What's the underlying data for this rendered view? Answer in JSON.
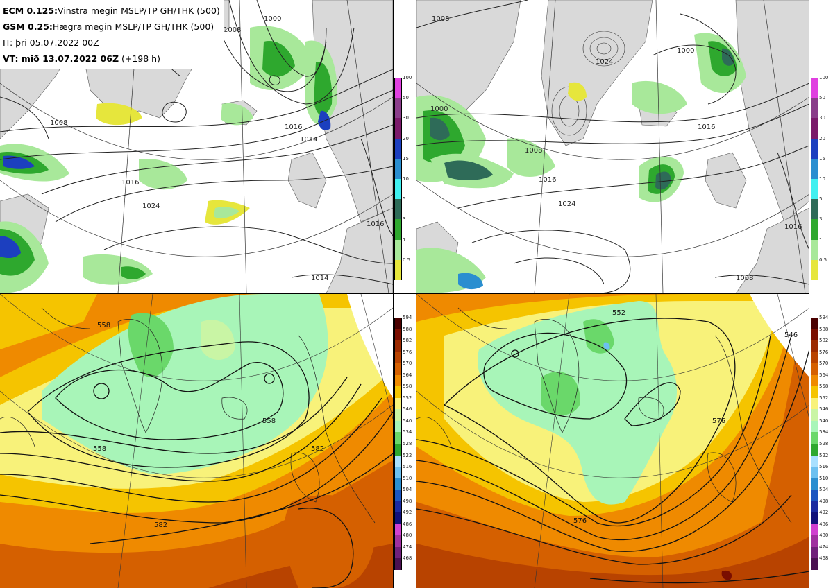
{
  "legend": {
    "line1_bold": "ECM 0.125:",
    "line1_text": "Vinstra megin MSLP/TP GH/THK (500)",
    "line2_bold": "GSM 0.25:",
    "line2_text": "Hægra megin MSLP/TP GH/THK (500)",
    "line3_text": "IT: þri 05.07.2022 00Z",
    "line4_bold": "VT: mið 13.07.2022 06Z",
    "line4_text": " (+198 h)"
  },
  "precip_colorbar": {
    "levels": [
      "100",
      "50",
      "30",
      "20",
      "15",
      "10",
      "5",
      "3",
      "1",
      "0.5"
    ],
    "colors": [
      "#e040e0",
      "#8a3d8a",
      "#7a1a6a",
      "#1c3fbf",
      "#2a8ed0",
      "#40f0f0",
      "#2e6b58",
      "#2ea82e",
      "#a8e89a",
      "#e6e63c"
    ]
  },
  "thickness_colorbar": {
    "levels": [
      "594",
      "588",
      "582",
      "576",
      "570",
      "564",
      "558",
      "552",
      "546",
      "540",
      "534",
      "528",
      "522",
      "516",
      "510",
      "504",
      "498",
      "492",
      "486",
      "480",
      "474",
      "468"
    ],
    "colors": [
      "#4a0000",
      "#7a0e00",
      "#9b2a00",
      "#b84300",
      "#d56000",
      "#ef8a00",
      "#f5c400",
      "#f8f27a",
      "#c9f5a5",
      "#a8f5b8",
      "#6ad86a",
      "#2ea82e",
      "#a8e0ff",
      "#6cc0f0",
      "#2a8ed0",
      "#1c56c0",
      "#1a2aa0",
      "#10107a",
      "#d040d0",
      "#a030a0",
      "#70207a",
      "#4a1050"
    ]
  },
  "panels": {
    "tl_labels": [
      "1016",
      "1024",
      "1016",
      "1016",
      "1014",
      "1008",
      "1000",
      "1008",
      "1016"
    ],
    "tr_labels": [
      "1008",
      "1000",
      "1024",
      "1016",
      "1024",
      "1008",
      "1016",
      "1000",
      "1016",
      "1008"
    ],
    "bl_labels": [
      "558",
      "558",
      "558",
      "582"
    ],
    "br_labels": [
      "552",
      "576",
      "576",
      "546"
    ]
  }
}
